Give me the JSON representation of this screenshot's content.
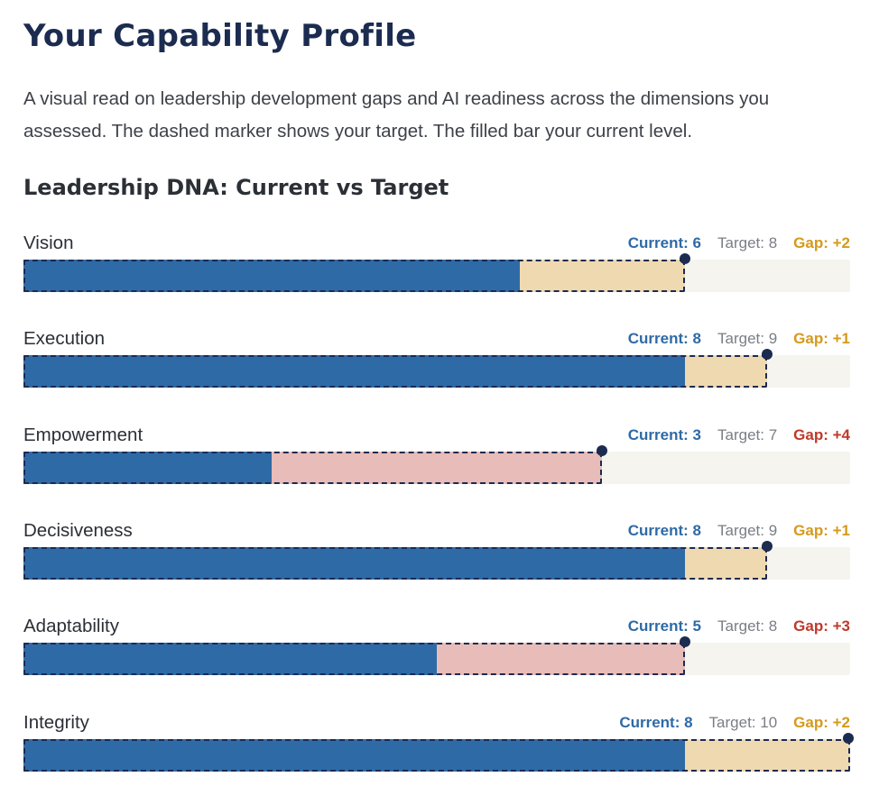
{
  "page": {
    "title": "Your Capability Profile",
    "intro": "A visual read on leadership development gaps and AI readiness across the dimensions you assessed. The dashed marker shows your target. The filled bar your current level."
  },
  "section": {
    "title": "Leadership DNA: Current vs Target"
  },
  "colors": {
    "current": "#2e6aa6",
    "gap_small": "#efd9b0",
    "gap_large": "#e8bcb8",
    "gap_small_text": "#d49a1c",
    "gap_large_text": "#c0392b",
    "target_marker": "#1c2b50",
    "track": "#f5f4ef"
  },
  "chart_data": {
    "type": "bar",
    "title": "Leadership DNA: Current vs Target",
    "xlim": [
      0,
      10
    ],
    "categories": [
      "Vision",
      "Execution",
      "Empowerment",
      "Decisiveness",
      "Adaptability",
      "Integrity"
    ],
    "series": [
      {
        "name": "Current",
        "values": [
          6,
          8,
          3,
          8,
          5,
          8
        ]
      },
      {
        "name": "Target",
        "values": [
          8,
          9,
          7,
          9,
          8,
          10
        ]
      }
    ],
    "rows": [
      {
        "label": "Vision",
        "current": 6,
        "target": 8,
        "current_text": "Current: 6",
        "target_text": "Target: 8",
        "gap_text": "Gap: +2",
        "gap_level": "moderate"
      },
      {
        "label": "Execution",
        "current": 8,
        "target": 9,
        "current_text": "Current: 8",
        "target_text": "Target: 9",
        "gap_text": "Gap: +1",
        "gap_level": "moderate"
      },
      {
        "label": "Empowerment",
        "current": 3,
        "target": 7,
        "current_text": "Current: 3",
        "target_text": "Target: 7",
        "gap_text": "Gap: +4",
        "gap_level": "large"
      },
      {
        "label": "Decisiveness",
        "current": 8,
        "target": 9,
        "current_text": "Current: 8",
        "target_text": "Target: 9",
        "gap_text": "Gap: +1",
        "gap_level": "moderate"
      },
      {
        "label": "Adaptability",
        "current": 5,
        "target": 8,
        "current_text": "Current: 5",
        "target_text": "Target: 8",
        "gap_text": "Gap: +3",
        "gap_level": "large"
      },
      {
        "label": "Integrity",
        "current": 8,
        "target": 10,
        "current_text": "Current: 8",
        "target_text": "Target: 10",
        "gap_text": "Gap: +2",
        "gap_level": "moderate"
      }
    ]
  }
}
